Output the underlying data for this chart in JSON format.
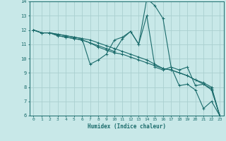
{
  "xlabel": "Humidex (Indice chaleur)",
  "background_color": "#c8e8e8",
  "grid_color": "#aacfcf",
  "line_color": "#1a6b6b",
  "xlim": [
    -0.5,
    23.5
  ],
  "ylim": [
    6,
    14
  ],
  "yticks": [
    6,
    7,
    8,
    9,
    10,
    11,
    12,
    13,
    14
  ],
  "xticks": [
    0,
    1,
    2,
    3,
    4,
    5,
    6,
    7,
    8,
    9,
    10,
    11,
    12,
    13,
    14,
    15,
    16,
    17,
    18,
    19,
    20,
    21,
    22,
    23
  ],
  "lines": [
    [
      12.0,
      11.8,
      11.8,
      11.7,
      11.6,
      11.5,
      11.4,
      9.6,
      9.9,
      10.3,
      11.3,
      11.5,
      11.9,
      11.0,
      14.2,
      13.7,
      12.8,
      9.4,
      9.2,
      9.4,
      8.1,
      8.2,
      7.8,
      6.0
    ],
    [
      12.0,
      11.8,
      11.8,
      11.6,
      11.5,
      11.4,
      11.3,
      11.1,
      10.8,
      10.6,
      10.4,
      10.3,
      10.1,
      9.9,
      9.7,
      9.5,
      9.3,
      9.2,
      9.0,
      8.8,
      8.5,
      8.3,
      8.0,
      6.0
    ],
    [
      12.0,
      11.8,
      11.8,
      11.7,
      11.6,
      11.5,
      11.4,
      11.3,
      11.1,
      10.9,
      10.7,
      10.5,
      10.3,
      10.1,
      9.9,
      9.6,
      9.3,
      9.2,
      9.0,
      8.8,
      8.5,
      8.2,
      7.9,
      6.0
    ],
    [
      12.0,
      11.8,
      11.8,
      11.6,
      11.5,
      11.4,
      11.3,
      11.1,
      10.9,
      10.7,
      10.5,
      11.4,
      11.9,
      11.0,
      13.0,
      9.4,
      9.2,
      9.4,
      8.1,
      8.2,
      7.8,
      6.5,
      7.0,
      6.0
    ]
  ]
}
